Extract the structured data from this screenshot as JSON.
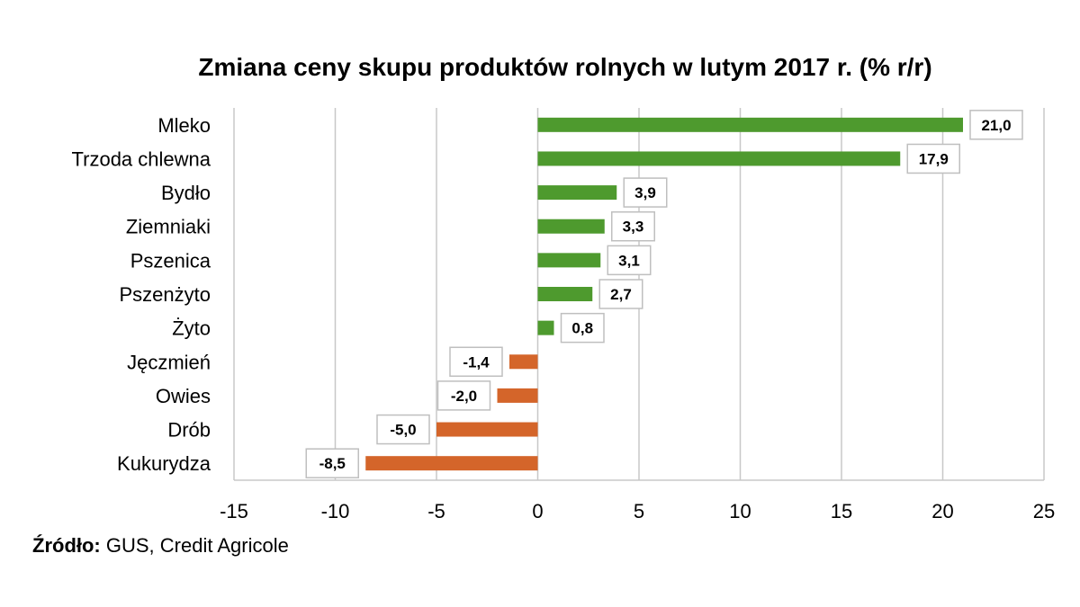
{
  "chart_data": {
    "type": "bar",
    "orientation": "horizontal",
    "title": "Zmiana ceny skupu produktów rolnych w lutym 2017 r. (% r/r)",
    "categories": [
      "Mleko",
      "Trzoda chlewna",
      "Bydło",
      "Ziemniaki",
      "Pszenica",
      "Pszenżyto",
      "Żyto",
      "Jęczmień",
      "Owies",
      "Drób",
      "Kukurydza"
    ],
    "values": [
      21.0,
      17.9,
      3.9,
      3.3,
      3.1,
      2.7,
      0.8,
      -1.4,
      -2.0,
      -5.0,
      -8.5
    ],
    "data_labels": [
      "21,0",
      "17,9",
      "3,9",
      "3,3",
      "3,1",
      "2,7",
      "0,8",
      "-1,4",
      "-2,0",
      "-5,0",
      "-8,5"
    ],
    "xlim": [
      -15,
      25
    ],
    "xticks": [
      -15,
      -10,
      -5,
      0,
      5,
      10,
      15,
      20,
      25
    ],
    "xtick_labels": [
      "-15",
      "-10",
      "-5",
      "0",
      "5",
      "10",
      "15",
      "20",
      "25"
    ],
    "grid": true,
    "colors": {
      "positive": "#4e9a2e",
      "negative": "#d4652a",
      "gridline": "#c8c8c8",
      "label_border": "#bfbfbf"
    }
  },
  "source": {
    "label": "Źródło:",
    "text": " GUS, Credit Agricole"
  }
}
